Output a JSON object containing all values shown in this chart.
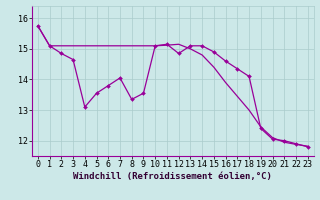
{
  "line1_x": [
    0,
    1,
    2,
    3,
    4,
    5,
    6,
    7,
    8,
    9,
    10,
    11,
    12,
    13,
    14,
    15,
    16,
    17,
    18,
    19,
    20,
    21,
    22,
    23
  ],
  "line1_y": [
    15.75,
    15.1,
    14.85,
    14.65,
    13.1,
    13.55,
    13.8,
    14.05,
    13.35,
    13.55,
    15.1,
    15.15,
    14.85,
    15.1,
    15.1,
    14.9,
    14.6,
    14.35,
    14.1,
    12.4,
    12.05,
    12.0,
    11.9,
    11.8
  ],
  "line2_x": [
    0,
    1,
    2,
    3,
    4,
    5,
    6,
    7,
    8,
    9,
    10,
    11,
    12,
    13,
    14,
    15,
    16,
    17,
    18,
    19,
    20,
    21,
    22,
    23
  ],
  "line2_y": [
    15.75,
    15.1,
    15.1,
    15.1,
    15.1,
    15.1,
    15.1,
    15.1,
    15.1,
    15.1,
    15.1,
    15.12,
    15.15,
    15.0,
    14.8,
    14.4,
    13.9,
    13.45,
    13.0,
    12.45,
    12.1,
    11.95,
    11.88,
    11.82
  ],
  "line_color": "#990099",
  "background_color": "#cce8e8",
  "grid_color": "#aacccc",
  "axis_bg": "#cce8e8",
  "xlabel": "Windchill (Refroidissement éolien,°C)",
  "xlim": [
    -0.5,
    23.5
  ],
  "ylim": [
    11.5,
    16.4
  ],
  "yticks": [
    12,
    13,
    14,
    15,
    16
  ],
  "xticks": [
    0,
    1,
    2,
    3,
    4,
    5,
    6,
    7,
    8,
    9,
    10,
    11,
    12,
    13,
    14,
    15,
    16,
    17,
    18,
    19,
    20,
    21,
    22,
    23
  ],
  "fontsize_xlabel": 6.5,
  "fontsize_ticks": 6.0
}
